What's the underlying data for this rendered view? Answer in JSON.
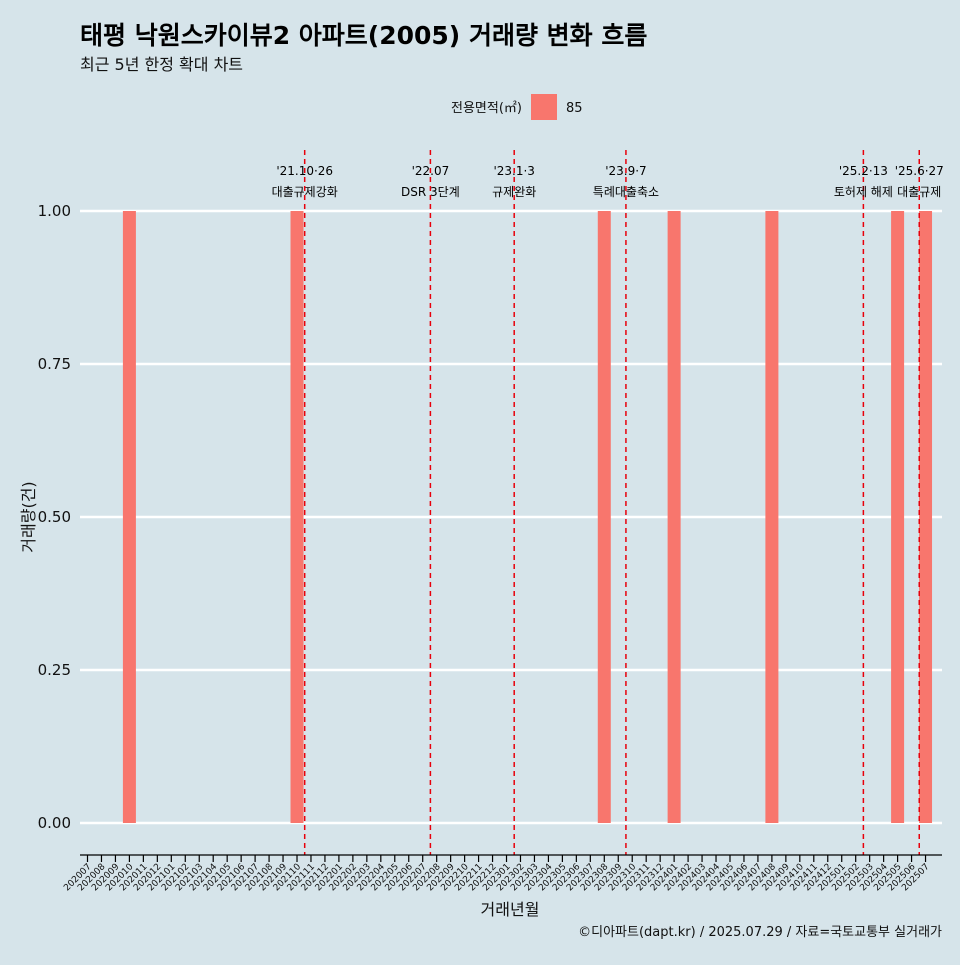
{
  "chart_data": {
    "type": "bar",
    "title": "태평 낙원스카이뷰2 아파트(2005) 거래량 변화 흐름",
    "subtitle": "최근 5년 한정 확대 차트",
    "xlabel": "거래년월",
    "ylabel": "거래량(건)",
    "ylim": [
      0,
      1
    ],
    "yticks": [
      "0.00",
      "0.25",
      "0.50",
      "0.75",
      "1.00"
    ],
    "categories": [
      "202007",
      "202008",
      "202009",
      "202010",
      "202011",
      "202012",
      "202101",
      "202102",
      "202103",
      "202104",
      "202105",
      "202106",
      "202107",
      "202108",
      "202109",
      "202110",
      "202111",
      "202112",
      "202201",
      "202202",
      "202203",
      "202204",
      "202205",
      "202206",
      "202207",
      "202208",
      "202209",
      "202210",
      "202211",
      "202212",
      "202301",
      "202302",
      "202303",
      "202304",
      "202305",
      "202306",
      "202307",
      "202308",
      "202309",
      "202310",
      "202311",
      "202312",
      "202401",
      "202402",
      "202403",
      "202404",
      "202405",
      "202406",
      "202407",
      "202408",
      "202409",
      "202410",
      "202411",
      "202412",
      "202501",
      "202502",
      "202503",
      "202504",
      "202505",
      "202506",
      "202507"
    ],
    "legend": {
      "title": "전용면적(㎡)",
      "position": "top"
    },
    "series": [
      {
        "name": "85",
        "color": "#f8766d",
        "values": [
          0,
          0,
          0,
          1,
          0,
          0,
          0,
          0,
          0,
          0,
          0,
          0,
          0,
          0,
          0,
          1,
          0,
          0,
          0,
          0,
          0,
          0,
          0,
          0,
          0,
          0,
          0,
          0,
          0,
          0,
          0,
          0,
          0,
          0,
          0,
          0,
          0,
          1,
          0,
          0,
          0,
          0,
          1,
          0,
          0,
          0,
          0,
          0,
          0,
          1,
          0,
          0,
          0,
          0,
          0,
          0,
          0,
          0,
          1,
          0,
          1
        ]
      }
    ],
    "annotations": [
      {
        "x": "202110",
        "date": "'21.10·26",
        "label": "대출규제강화"
      },
      {
        "x": "202207",
        "date": "'22.07",
        "label": "DSR 3단계"
      },
      {
        "x": "202301",
        "date": "'23.1·3",
        "label": "규제완화"
      },
      {
        "x": "202309",
        "date": "'23.9·7",
        "label": "특례대출축소"
      },
      {
        "x": "202502",
        "date": "'25.2·13",
        "label": "토허제 해제"
      },
      {
        "x": "202506",
        "date": "'25.6·27",
        "label": "대출규제"
      }
    ],
    "grid": true
  },
  "caption": "©디아파트(dapt.kr) / 2025.07.29 / 자료=국토교통부 실거래가",
  "colors": {
    "background": "#d6e4ea",
    "grid": "#ffffff",
    "vline": "#e8000b"
  }
}
